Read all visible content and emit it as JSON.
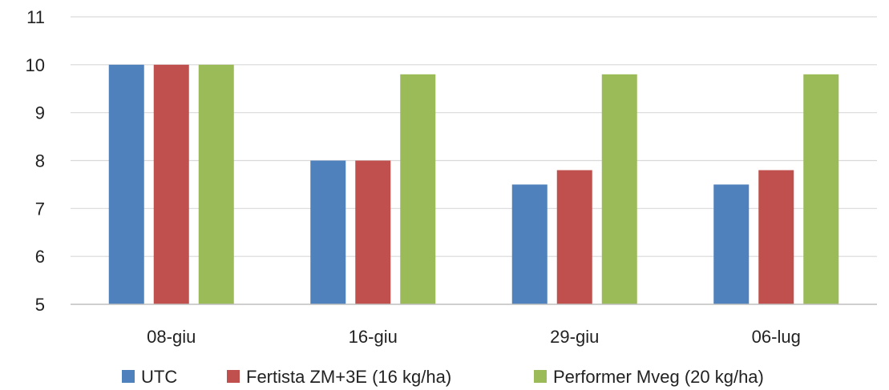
{
  "chart_data": {
    "type": "bar",
    "title": "",
    "xlabel": "",
    "ylabel": "",
    "categories": [
      "08-giu",
      "16-giu",
      "29-giu",
      "06-lug"
    ],
    "series": [
      {
        "name": "UTC",
        "values": [
          10,
          8,
          7.5,
          7.5
        ],
        "color": "#4f81bd"
      },
      {
        "name": "Fertista ZM+3E (16 kg/ha)",
        "values": [
          10,
          8,
          7.8,
          7.8
        ],
        "color": "#c0504d"
      },
      {
        "name": "Performer Mveg (20 kg/ha)",
        "values": [
          10,
          9.8,
          9.8,
          9.8
        ],
        "color": "#9bbb59"
      }
    ],
    "ylim": [
      5,
      11
    ],
    "yticks": [
      5,
      6,
      7,
      8,
      9,
      10,
      11
    ],
    "grid": true,
    "legend_position": "bottom",
    "gridline_color": "#d9d9d9",
    "axis_line_color": "#bfbfbf"
  }
}
